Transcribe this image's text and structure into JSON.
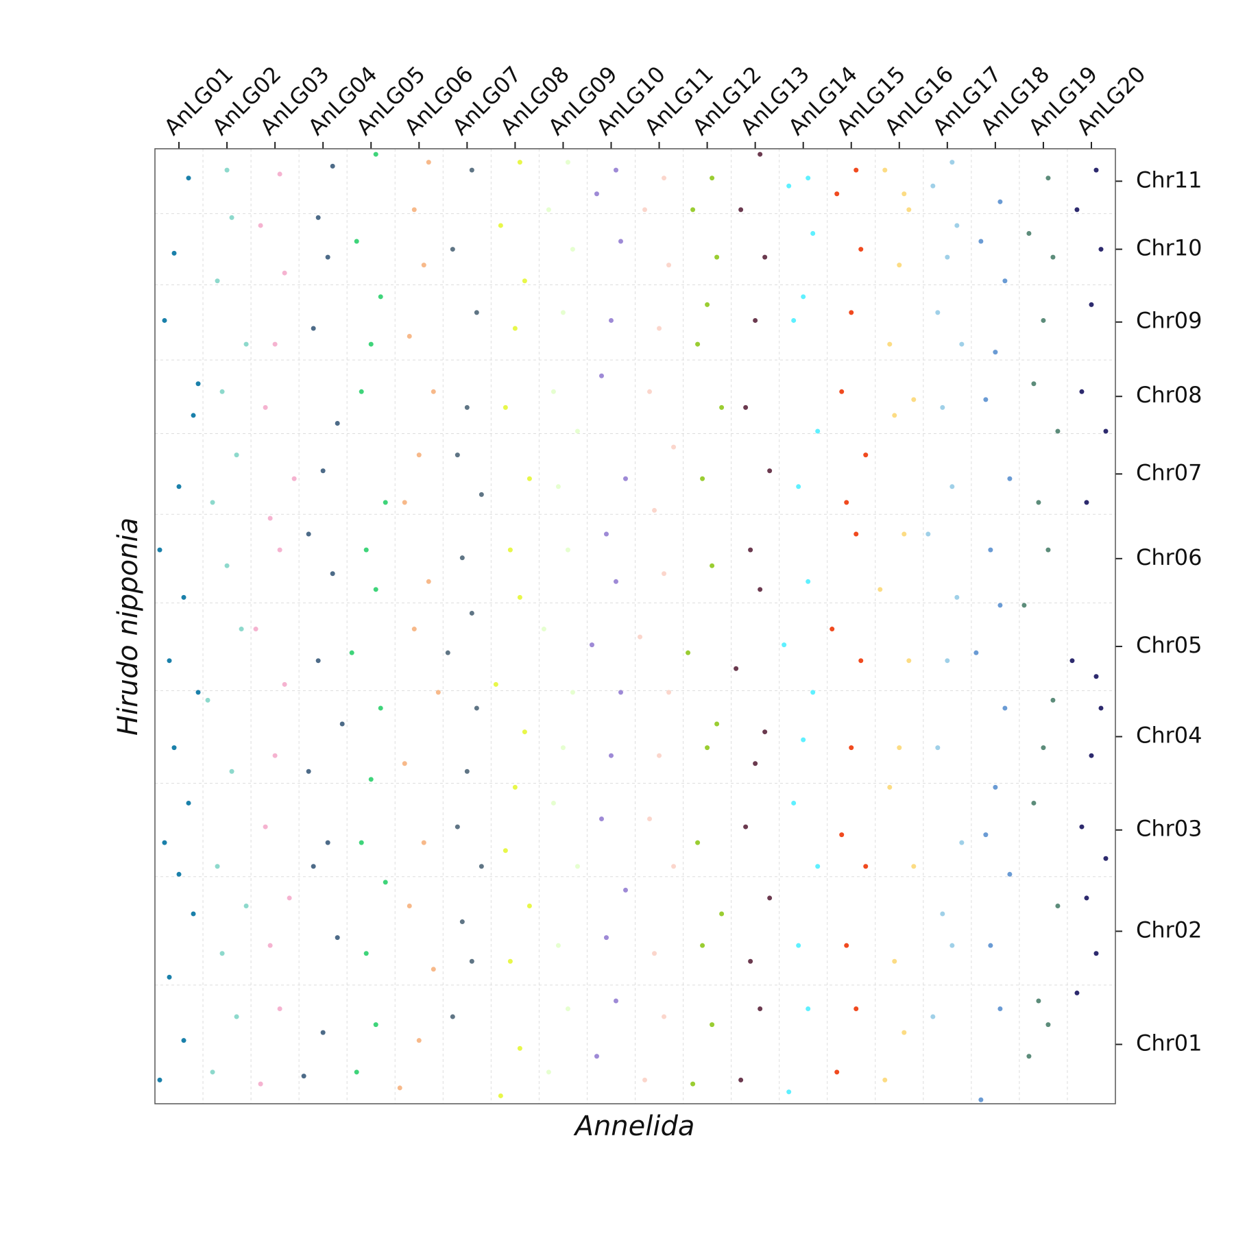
{
  "chart_data": {
    "type": "scatter",
    "xlabel": "Annelida",
    "ylabel": "Hirudo nipponia",
    "xlim": [
      0,
      20
    ],
    "ylim": [
      0,
      1207
    ],
    "xticks": [
      {
        "value": 0.5,
        "label": "AnLG01"
      },
      {
        "value": 1.5,
        "label": "AnLG02"
      },
      {
        "value": 2.5,
        "label": "AnLG03"
      },
      {
        "value": 3.5,
        "label": "AnLG04"
      },
      {
        "value": 4.5,
        "label": "AnLG05"
      },
      {
        "value": 5.5,
        "label": "AnLG06"
      },
      {
        "value": 6.5,
        "label": "AnLG07"
      },
      {
        "value": 7.5,
        "label": "AnLG08"
      },
      {
        "value": 8.5,
        "label": "AnLG09"
      },
      {
        "value": 9.5,
        "label": "AnLG10"
      },
      {
        "value": 10.5,
        "label": "AnLG11"
      },
      {
        "value": 11.5,
        "label": "AnLG12"
      },
      {
        "value": 12.5,
        "label": "AnLG13"
      },
      {
        "value": 13.5,
        "label": "AnLG14"
      },
      {
        "value": 14.5,
        "label": "AnLG15"
      },
      {
        "value": 15.5,
        "label": "AnLG16"
      },
      {
        "value": 16.5,
        "label": "AnLG17"
      },
      {
        "value": 17.5,
        "label": "AnLG18"
      },
      {
        "value": 18.5,
        "label": "AnLG19"
      },
      {
        "value": 19.5,
        "label": "AnLG20"
      }
    ],
    "yticks": [
      {
        "value": 75,
        "label": "Chr01"
      },
      {
        "value": 218,
        "label": "Chr02"
      },
      {
        "value": 346,
        "label": "Chr03"
      },
      {
        "value": 464,
        "label": "Chr04"
      },
      {
        "value": 578,
        "label": "Chr05"
      },
      {
        "value": 689,
        "label": "Chr06"
      },
      {
        "value": 796,
        "label": "Chr07"
      },
      {
        "value": 894,
        "label": "Chr08"
      },
      {
        "value": 988,
        "label": "Chr09"
      },
      {
        "value": 1080,
        "label": "Chr10"
      },
      {
        "value": 1166,
        "label": "Chr11"
      }
    ],
    "xgrid": [
      1,
      2,
      3,
      4,
      5,
      6,
      7,
      8,
      9,
      10,
      11,
      12,
      13,
      14,
      15,
      16,
      17,
      18,
      19
    ],
    "ygrid": [
      150,
      287,
      405,
      522,
      633,
      745,
      847,
      940,
      1035,
      1125
    ],
    "series": [
      {
        "color": "#1a80aa",
        "x": [
          0.1,
          0.6,
          0.3,
          0.8,
          0.5,
          0.2,
          0.7,
          0.4,
          0.9,
          0.3,
          0.6,
          0.1,
          0.5,
          0.8,
          0.2,
          0.7,
          0.4,
          0.9
        ],
        "y": [
          30,
          80,
          160,
          240,
          290,
          330,
          380,
          450,
          520,
          560,
          640,
          700,
          780,
          870,
          990,
          1170,
          1075,
          910
        ]
      },
      {
        "color": "#8dd9cc",
        "x": [
          1.2,
          1.7,
          1.4,
          1.9,
          1.3,
          1.6,
          1.1,
          1.8,
          1.5,
          1.2,
          1.7,
          1.4,
          1.9,
          1.3,
          1.6,
          1.5
        ],
        "y": [
          40,
          110,
          190,
          250,
          300,
          420,
          510,
          600,
          680,
          760,
          820,
          900,
          960,
          1040,
          1120,
          1180
        ]
      },
      {
        "color": "#f5b3d0",
        "x": [
          2.2,
          2.6,
          2.4,
          2.8,
          2.3,
          2.5,
          2.7,
          2.1,
          2.6,
          2.4,
          2.9,
          2.3,
          2.5,
          2.7,
          2.2,
          2.6
        ],
        "y": [
          25,
          120,
          200,
          260,
          350,
          440,
          530,
          600,
          700,
          740,
          790,
          880,
          960,
          1050,
          1110,
          1175
        ]
      },
      {
        "color": "#4d6b88",
        "x": [
          3.1,
          3.5,
          3.8,
          3.3,
          3.6,
          3.2,
          3.9,
          3.4,
          3.7,
          3.2,
          3.5,
          3.8,
          3.3,
          3.6,
          3.4,
          3.7
        ],
        "y": [
          35,
          90,
          210,
          300,
          330,
          420,
          480,
          560,
          670,
          720,
          800,
          860,
          980,
          1070,
          1120,
          1185
        ]
      },
      {
        "color": "#3fd47a",
        "x": [
          4.2,
          4.6,
          4.4,
          4.8,
          4.3,
          4.5,
          4.7,
          4.1,
          4.6,
          4.4,
          4.8,
          4.3,
          4.5,
          4.7,
          4.2,
          4.6
        ],
        "y": [
          40,
          100,
          190,
          280,
          330,
          410,
          500,
          570,
          650,
          700,
          760,
          900,
          960,
          1020,
          1090,
          1200
        ]
      },
      {
        "color": "#f7b98a",
        "x": [
          5.1,
          5.5,
          5.8,
          5.3,
          5.6,
          5.2,
          5.9,
          5.4,
          5.7,
          5.2,
          5.5,
          5.8,
          5.3,
          5.6,
          5.4,
          5.7
        ],
        "y": [
          20,
          80,
          170,
          250,
          330,
          430,
          520,
          600,
          660,
          760,
          820,
          900,
          970,
          1060,
          1130,
          1190
        ]
      },
      {
        "color": "#5f7585",
        "x": [
          6.2,
          6.6,
          6.4,
          6.8,
          6.3,
          6.5,
          6.7,
          6.1,
          6.6,
          6.4,
          6.8,
          6.3,
          6.5,
          6.7,
          6.2,
          6.6
        ],
        "y": [
          110,
          180,
          230,
          300,
          350,
          420,
          500,
          570,
          620,
          690,
          770,
          820,
          880,
          1000,
          1080,
          1180
        ]
      },
      {
        "color": "#e8f74a",
        "x": [
          7.2,
          7.6,
          7.4,
          7.8,
          7.3,
          7.5,
          7.7,
          7.1,
          7.6,
          7.4,
          7.8,
          7.3,
          7.5,
          7.7,
          7.2,
          7.6
        ],
        "y": [
          10,
          70,
          180,
          250,
          320,
          400,
          470,
          530,
          640,
          700,
          790,
          880,
          980,
          1040,
          1110,
          1190
        ]
      },
      {
        "color": "#e6ffd0",
        "x": [
          8.2,
          8.6,
          8.4,
          8.8,
          8.3,
          8.5,
          8.7,
          8.1,
          8.6,
          8.4,
          8.8,
          8.3,
          8.5,
          8.7,
          8.2,
          8.6
        ],
        "y": [
          40,
          120,
          200,
          300,
          380,
          450,
          520,
          600,
          700,
          780,
          850,
          900,
          1000,
          1080,
          1130,
          1190
        ]
      },
      {
        "color": "#9e8ad6",
        "x": [
          9.2,
          9.6,
          9.4,
          9.8,
          9.3,
          9.5,
          9.7,
          9.1,
          9.6,
          9.4,
          9.8,
          9.3,
          9.5,
          9.7,
          9.2,
          9.6
        ],
        "y": [
          60,
          130,
          210,
          270,
          360,
          440,
          520,
          580,
          660,
          720,
          790,
          920,
          990,
          1090,
          1150,
          1180
        ]
      },
      {
        "color": "#fbd6cc",
        "x": [
          10.2,
          10.6,
          10.4,
          10.8,
          10.3,
          10.5,
          10.7,
          10.1,
          10.6,
          10.4,
          10.8,
          10.3,
          10.5,
          10.7,
          10.2,
          10.6
        ],
        "y": [
          30,
          110,
          190,
          300,
          360,
          440,
          520,
          590,
          670,
          750,
          830,
          900,
          980,
          1060,
          1130,
          1170
        ]
      },
      {
        "color": "#9acd32",
        "x": [
          11.2,
          11.6,
          11.4,
          11.8,
          11.3,
          11.5,
          11.7,
          11.1,
          11.6,
          11.4,
          11.8,
          11.3,
          11.5,
          11.7,
          11.2,
          11.6
        ],
        "y": [
          25,
          100,
          200,
          240,
          330,
          450,
          480,
          570,
          680,
          790,
          880,
          960,
          1010,
          1070,
          1130,
          1170
        ]
      },
      {
        "color": "#6b3a4f",
        "x": [
          12.2,
          12.6,
          12.4,
          12.8,
          12.3,
          12.5,
          12.7,
          12.1,
          12.6,
          12.4,
          12.8,
          12.3,
          12.5,
          12.7,
          12.2,
          12.6
        ],
        "y": [
          30,
          120,
          180,
          260,
          350,
          430,
          470,
          550,
          650,
          700,
          800,
          880,
          990,
          1070,
          1130,
          1200
        ]
      },
      {
        "color": "#5ff0ff",
        "x": [
          13.2,
          13.6,
          13.4,
          13.8,
          13.3,
          13.5,
          13.7,
          13.1,
          13.6,
          13.4,
          13.8,
          13.3,
          13.5,
          13.7,
          13.2,
          13.6
        ],
        "y": [
          15,
          120,
          200,
          300,
          380,
          460,
          520,
          580,
          660,
          780,
          850,
          990,
          1020,
          1100,
          1160,
          1170
        ]
      },
      {
        "color": "#f04a1f",
        "x": [
          14.2,
          14.6,
          14.4,
          14.8,
          14.3,
          14.5,
          14.7,
          14.1,
          14.6,
          14.4,
          14.8,
          14.3,
          14.5,
          14.7,
          14.2,
          14.6
        ],
        "y": [
          40,
          120,
          200,
          300,
          340,
          450,
          560,
          600,
          720,
          760,
          820,
          900,
          1000,
          1080,
          1150,
          1180
        ]
      },
      {
        "color": "#fcdc84",
        "x": [
          15.2,
          15.6,
          15.4,
          15.8,
          15.3,
          15.5,
          15.7,
          15.1,
          15.6,
          15.4,
          15.8,
          15.3,
          15.5,
          15.7,
          15.2,
          15.6
        ],
        "y": [
          30,
          90,
          180,
          300,
          400,
          450,
          560,
          650,
          720,
          870,
          890,
          960,
          1060,
          1130,
          1180,
          1150
        ]
      },
      {
        "color": "#9fd0e8",
        "x": [
          16.2,
          16.6,
          16.4,
          16.8,
          16.3,
          16.5,
          16.7,
          16.1,
          16.6,
          16.4,
          16.8,
          16.3,
          16.5,
          16.7,
          16.2,
          16.6
        ],
        "y": [
          110,
          200,
          240,
          330,
          450,
          560,
          640,
          720,
          780,
          880,
          960,
          1000,
          1070,
          1110,
          1160,
          1190
        ]
      },
      {
        "color": "#6a9bd4",
        "x": [
          17.2,
          17.6,
          17.4,
          17.8,
          17.3,
          17.5,
          17.7,
          17.1,
          17.6,
          17.4,
          17.8,
          17.3,
          17.5,
          17.7,
          17.2,
          17.6
        ],
        "y": [
          5,
          120,
          200,
          290,
          340,
          400,
          500,
          570,
          630,
          700,
          790,
          890,
          950,
          1040,
          1090,
          1140
        ]
      },
      {
        "color": "#5c8c7a",
        "x": [
          18.2,
          18.6,
          18.4,
          18.8,
          18.3,
          18.5,
          18.7,
          18.1,
          18.6,
          18.4,
          18.8,
          18.3,
          18.5,
          18.7,
          18.2,
          18.6
        ],
        "y": [
          60,
          100,
          130,
          250,
          380,
          450,
          510,
          630,
          700,
          760,
          850,
          910,
          990,
          1070,
          1100,
          1170
        ]
      },
      {
        "color": "#2d2a6e",
        "x": [
          19.2,
          19.6,
          19.4,
          19.8,
          19.3,
          19.5,
          19.7,
          19.1,
          19.6,
          19.4,
          19.8,
          19.3,
          19.5,
          19.7,
          19.2,
          19.6
        ],
        "y": [
          140,
          190,
          260,
          310,
          350,
          440,
          500,
          560,
          540,
          760,
          850,
          900,
          1010,
          1080,
          1130,
          1180
        ]
      }
    ]
  }
}
